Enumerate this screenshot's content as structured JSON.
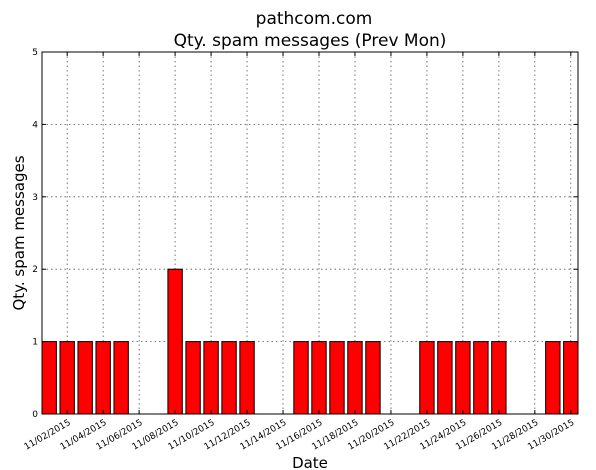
{
  "chart_data": {
    "type": "bar",
    "title": "pathcom.com",
    "subtitle": "Qty. spam messages (Prev Mon)",
    "xlabel": "Date",
    "ylabel": "Qty. spam messages",
    "ylim": [
      0,
      5
    ],
    "yticks": [
      "0",
      "1",
      "2",
      "3",
      "4",
      "5"
    ],
    "grid": true,
    "categories": [
      "11/01/2015",
      "11/02/2015",
      "11/03/2015",
      "11/04/2015",
      "11/05/2015",
      "11/06/2015",
      "11/07/2015",
      "11/08/2015",
      "11/09/2015",
      "11/10/2015",
      "11/11/2015",
      "11/12/2015",
      "11/13/2015",
      "11/14/2015",
      "11/15/2015",
      "11/16/2015",
      "11/17/2015",
      "11/18/2015",
      "11/19/2015",
      "11/20/2015",
      "11/21/2015",
      "11/22/2015",
      "11/23/2015",
      "11/24/2015",
      "11/25/2015",
      "11/26/2015",
      "11/27/2015",
      "11/28/2015",
      "11/29/2015",
      "11/30/2015"
    ],
    "values": [
      1,
      1,
      1,
      1,
      1,
      0,
      0,
      2,
      1,
      1,
      1,
      1,
      0,
      0,
      1,
      1,
      1,
      1,
      1,
      0,
      0,
      1,
      1,
      1,
      1,
      1,
      0,
      0,
      1,
      1
    ],
    "xticks": [
      "11/02/2015",
      "11/04/2015",
      "11/06/2015",
      "11/08/2015",
      "11/10/2015",
      "11/12/2015",
      "11/14/2015",
      "11/16/2015",
      "11/18/2015",
      "11/20/2015",
      "11/22/2015",
      "11/24/2015",
      "11/26/2015",
      "11/28/2015",
      "11/30/2015"
    ],
    "bar_color": "#ff0000"
  }
}
